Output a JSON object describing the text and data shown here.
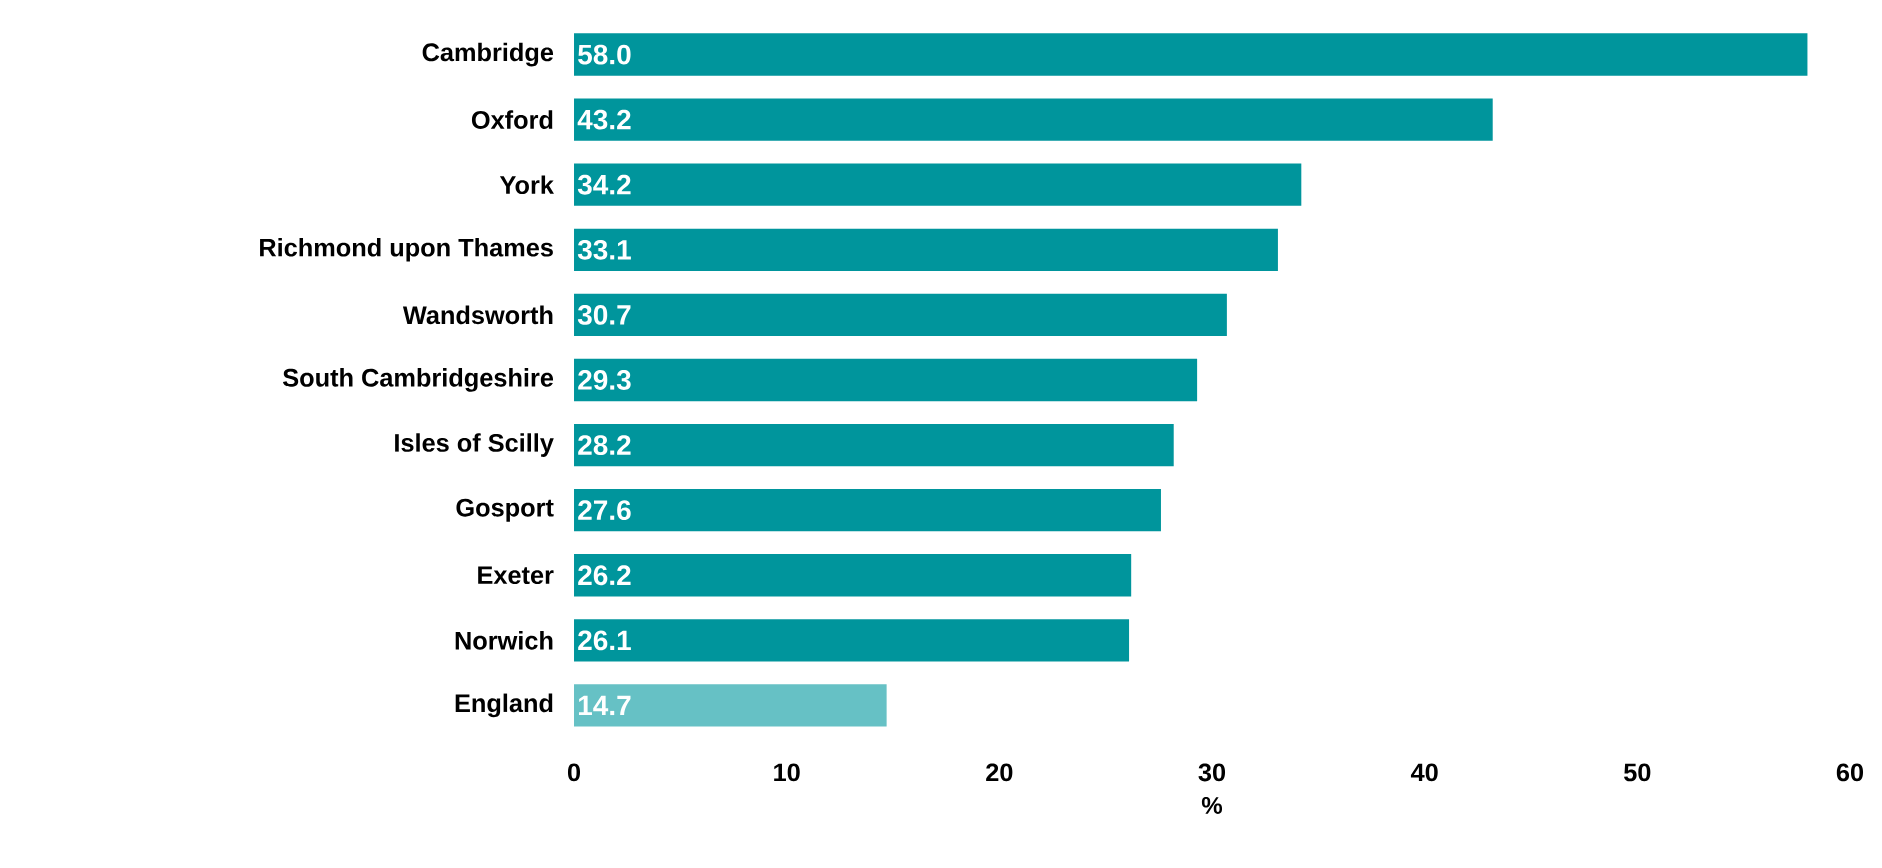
{
  "chart_data": {
    "type": "bar",
    "orientation": "horizontal",
    "xlabel": "%",
    "categories": [
      "Cambridge",
      "Oxford",
      "York",
      "Richmond upon Thames",
      "Wandsworth",
      "South Cambridgeshire",
      "Isles of Scilly",
      "Gosport",
      "Exeter",
      "Norwich",
      "England"
    ],
    "values": [
      58.0,
      43.2,
      34.2,
      33.1,
      30.7,
      29.3,
      28.2,
      27.6,
      26.2,
      26.1,
      14.7
    ],
    "colors": [
      "#00959c",
      "#00959c",
      "#00959c",
      "#00959c",
      "#00959c",
      "#00959c",
      "#00959c",
      "#00959c",
      "#00959c",
      "#00959c",
      "#66c1c5"
    ],
    "value_labels": [
      "58.0",
      "43.2",
      "34.2",
      "33.1",
      "30.7",
      "29.3",
      "28.2",
      "27.6",
      "26.2",
      "26.1",
      "14.7"
    ],
    "xlim": [
      0,
      60
    ],
    "xticks": [
      0,
      10,
      20,
      30,
      40,
      50,
      60
    ]
  }
}
